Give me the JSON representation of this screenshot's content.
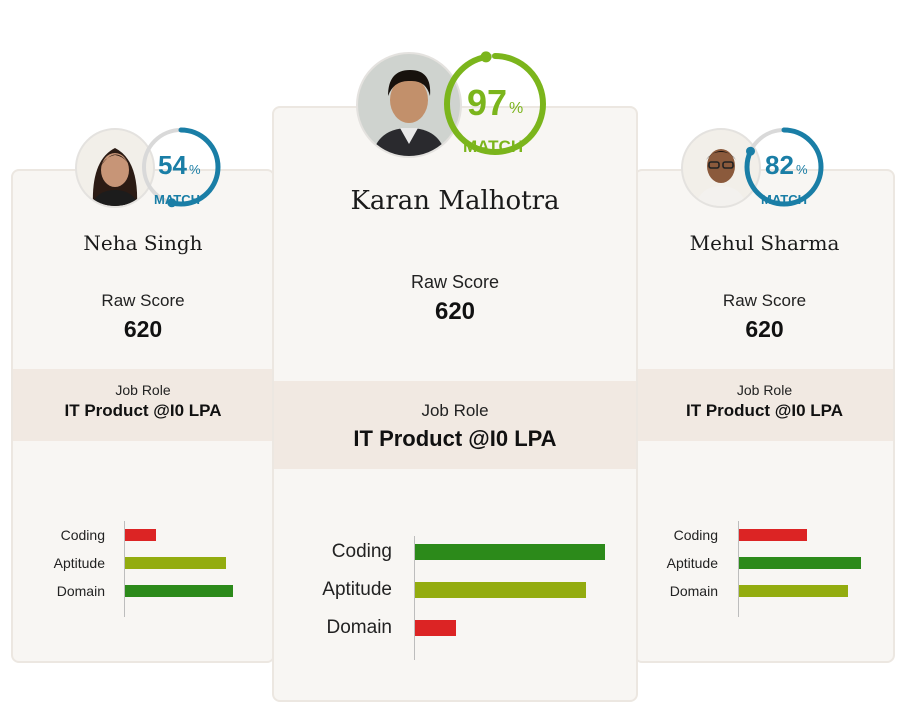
{
  "colors": {
    "red": "#dc2424",
    "olive": "#93ac0f",
    "green": "#2c8a1a",
    "blue": "#1a7ea6",
    "lime": "#7bb51c"
  },
  "candidates": {
    "left": {
      "name": "Neha Singh",
      "match_value": "54",
      "match_percent": 54,
      "match_label": "MATCH",
      "pct_sign": "%",
      "raw_score_label": "Raw Score",
      "raw_score": "620",
      "job_role_label": "Job Role",
      "job_role": "IT Product @I0 LPA",
      "skills": [
        {
          "label": "Coding",
          "value": 28,
          "color": "red"
        },
        {
          "label": "Aptitude",
          "value": 92,
          "color": "olive"
        },
        {
          "label": "Domain",
          "value": 98,
          "color": "green"
        }
      ]
    },
    "center": {
      "name": "Karan Malhotra",
      "match_value": "97",
      "match_percent": 97,
      "match_label": "MATCH",
      "pct_sign": "%",
      "raw_score_label": "Raw Score",
      "raw_score": "620",
      "job_role_label": "Job Role",
      "job_role": "IT Product @I0 LPA",
      "skills": [
        {
          "label": "Coding",
          "value": 97,
          "color": "green"
        },
        {
          "label": "Aptitude",
          "value": 87,
          "color": "olive"
        },
        {
          "label": "Domain",
          "value": 21,
          "color": "red"
        }
      ]
    },
    "right": {
      "name": "Mehul Sharma",
      "match_value": "82",
      "match_percent": 82,
      "match_label": "MATCH",
      "pct_sign": "%",
      "raw_score_label": "Raw Score",
      "raw_score": "620",
      "job_role_label": "Job Role",
      "job_role": "IT Product @I0 LPA",
      "skills": [
        {
          "label": "Coding",
          "value": 56,
          "color": "red"
        },
        {
          "label": "Aptitude",
          "value": 100,
          "color": "green"
        },
        {
          "label": "Domain",
          "value": 89,
          "color": "olive"
        }
      ]
    }
  }
}
